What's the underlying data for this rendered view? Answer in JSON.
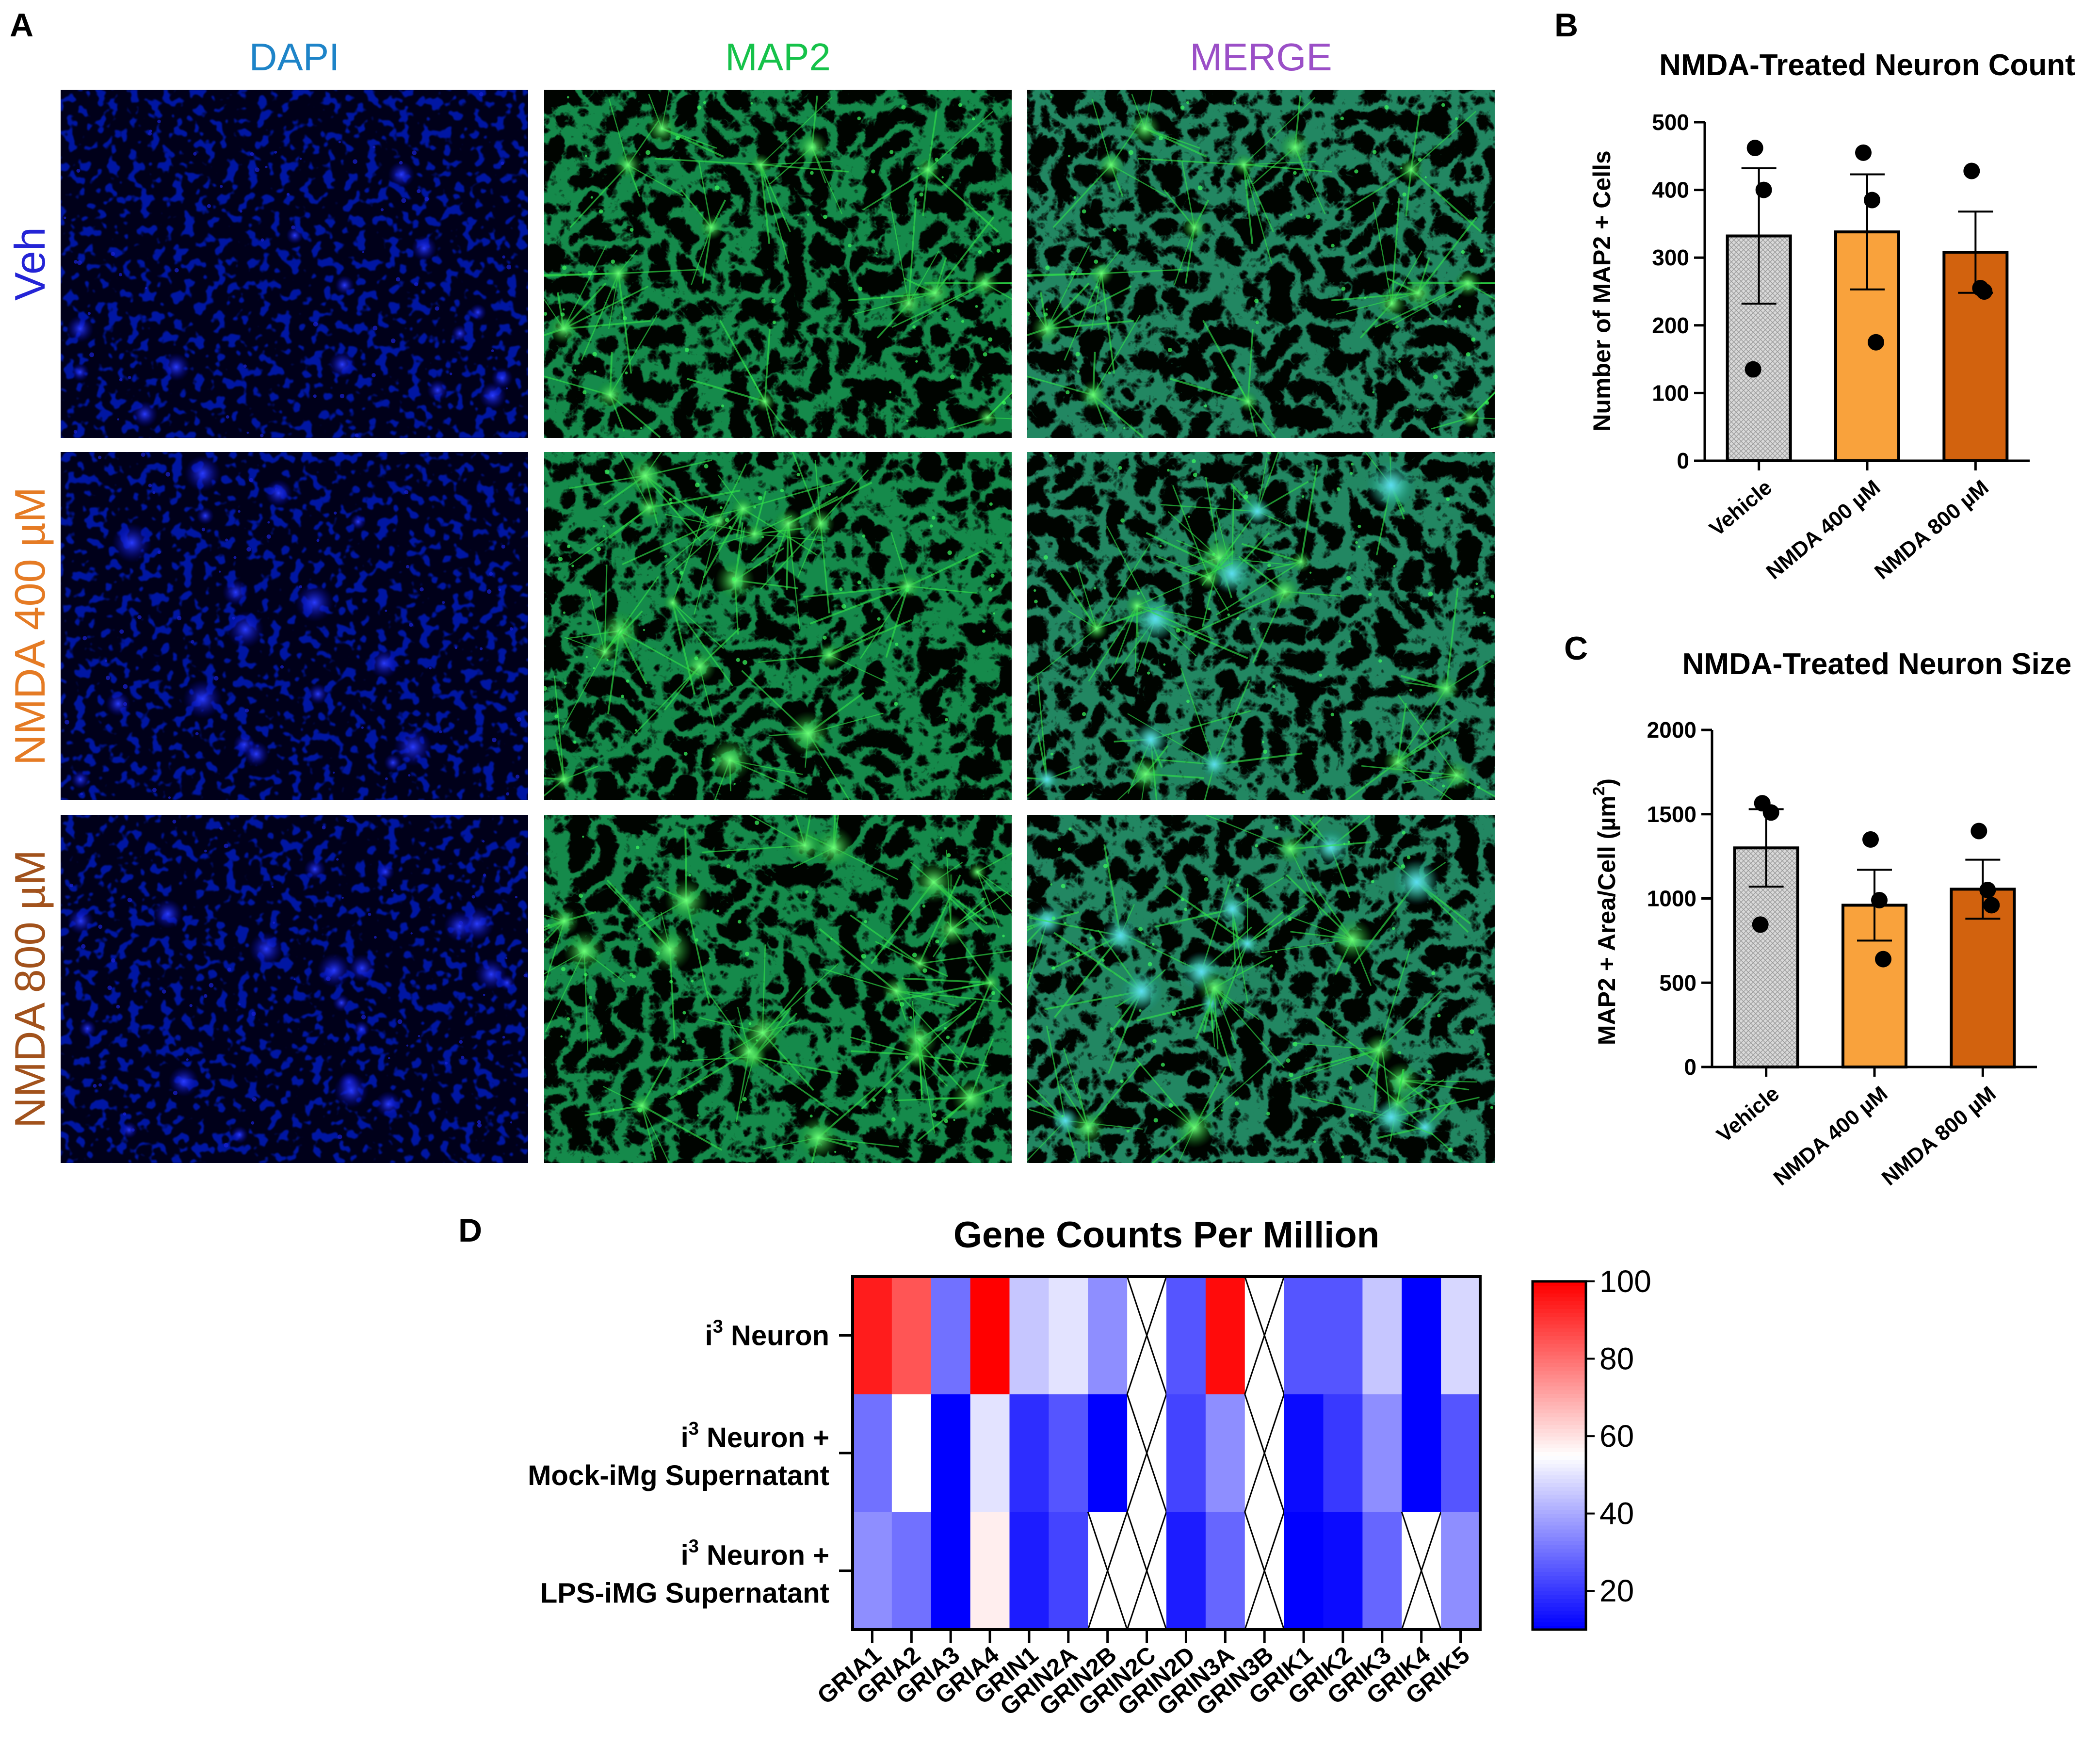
{
  "panel_a": {
    "letter": "A",
    "columns": [
      {
        "label": "DAPI",
        "color": "#1e84c8"
      },
      {
        "label": "MAP2",
        "color": "#16c24a"
      },
      {
        "label": "MERGE",
        "color": "#9b4fc7"
      }
    ],
    "rows": [
      {
        "label": "Veh",
        "color": "#2424d6"
      },
      {
        "label": "NMDA 400 µM",
        "color": "#e57b24"
      },
      {
        "label": "NMDA 800 µM",
        "color": "#a2521c"
      }
    ]
  },
  "chart_data": [
    {
      "type": "bar",
      "panel": "B",
      "title": "NMDA-Treated Neuron Count",
      "ylabel": "Number of MAP2 + Cells",
      "ylim": [
        0,
        500
      ],
      "yticks": [
        0,
        100,
        200,
        300,
        400,
        500
      ],
      "categories": [
        "Vehicle",
        "NMDA 400 µM",
        "NMDA 800 µM"
      ],
      "values": [
        332,
        338,
        308
      ],
      "sem": [
        100,
        85,
        60
      ],
      "points": [
        [
          462,
          400,
          135
        ],
        [
          455,
          385,
          175
        ],
        [
          428,
          255,
          250
        ]
      ],
      "bar_colors": [
        "#d9d9d9",
        "#f9a23c",
        "#d2620e"
      ],
      "grid": false
    },
    {
      "type": "bar",
      "panel": "C",
      "title": "NMDA-Treated Neuron Size",
      "ylabel": "MAP2 + Area/Cell (µm",
      "ylabel_sup": "2",
      "ylabel_end": ")",
      "ylim": [
        0,
        2000
      ],
      "yticks": [
        0,
        500,
        1000,
        1500,
        2000
      ],
      "categories": [
        "Vehicle",
        "NMDA 400 µM",
        "NMDA 800 µM"
      ],
      "values": [
        1300,
        960,
        1055
      ],
      "sem": [
        230,
        210,
        175
      ],
      "points": [
        [
          1565,
          1510,
          845
        ],
        [
          1350,
          990,
          640
        ],
        [
          1400,
          1050,
          960
        ]
      ],
      "bar_colors": [
        "#d9d9d9",
        "#f9a23c",
        "#d2620e"
      ],
      "grid": false
    },
    {
      "type": "heatmap",
      "panel": "D",
      "title": "Gene Counts Per Million",
      "rows": [
        {
          "line1": "i",
          "sup": "3",
          "line1b": " Neuron",
          "line2": ""
        },
        {
          "line1": "i",
          "sup": "3",
          "line1b": " Neuron +",
          "line2": "Mock-iMg Supernatant"
        },
        {
          "line1": "i",
          "sup": "3",
          "line1b": " Neuron +",
          "line2": "LPS-iMG Supernatant"
        }
      ],
      "columns": [
        "GRIA1",
        "GRIA2",
        "GRIA3",
        "GRIA4",
        "GRIN1",
        "GRIN2A",
        "GRIN2B",
        "GRIN2C",
        "GRIN2D",
        "GRIN3A",
        "GRIN3B",
        "GRIK1",
        "GRIK2",
        "GRIK3",
        "GRIK4",
        "GRIK5"
      ],
      "values": [
        [
          95,
          85,
          30,
          100,
          45,
          50,
          35,
          null,
          25,
          98,
          null,
          25,
          25,
          45,
          10,
          48
        ],
        [
          30,
          55,
          10,
          50,
          18,
          25,
          8,
          null,
          22,
          35,
          null,
          12,
          20,
          35,
          8,
          25
        ],
        [
          35,
          30,
          10,
          58,
          15,
          22,
          null,
          null,
          15,
          28,
          null,
          10,
          12,
          28,
          null,
          35
        ]
      ],
      "colorscale": {
        "min": 10,
        "mid": 55,
        "max": 100,
        "low": "#0000ff",
        "mid_color": "#ffffff",
        "high": "#ff0000"
      },
      "colorbar_ticks": [
        20,
        40,
        60,
        80,
        100
      ]
    }
  ]
}
